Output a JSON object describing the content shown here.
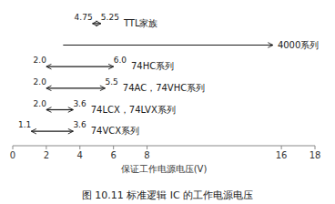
{
  "chart_data": {
    "type": "range",
    "title": "图 10.11   标准逻辑 IC 的工作电源电压",
    "xlabel": "保证工作电源电压(V)",
    "xlim": [
      0,
      18
    ],
    "xticks": [
      0,
      2,
      4,
      6,
      8,
      16,
      18
    ],
    "color": "#1a1a1a",
    "series": [
      {
        "name": "TTL家族",
        "values": [
          4.75,
          5.25
        ],
        "value_labels": [
          "4.75",
          "5.25"
        ],
        "marker": "double-arrow"
      },
      {
        "name": "4000系列",
        "values": [
          3.0,
          15.5
        ],
        "marker": "arrow"
      },
      {
        "name": "74HC系列",
        "values": [
          2.0,
          6.0
        ],
        "value_labels": [
          "2.0",
          "6.0"
        ],
        "marker": "double-arrow"
      },
      {
        "name": "74AC，74VHC系列",
        "values": [
          2.0,
          5.5
        ],
        "value_labels": [
          "2.0",
          "5.5"
        ],
        "marker": "double-arrow"
      },
      {
        "name": "74LCX，74LVX系列",
        "values": [
          2.0,
          3.6
        ],
        "value_labels": [
          "2.0",
          "3.6"
        ],
        "marker": "double-arrow"
      },
      {
        "name": "74VCX系列",
        "values": [
          1.1,
          3.6
        ],
        "value_labels": [
          "1.1",
          "3.6"
        ],
        "marker": "double-arrow"
      }
    ]
  }
}
